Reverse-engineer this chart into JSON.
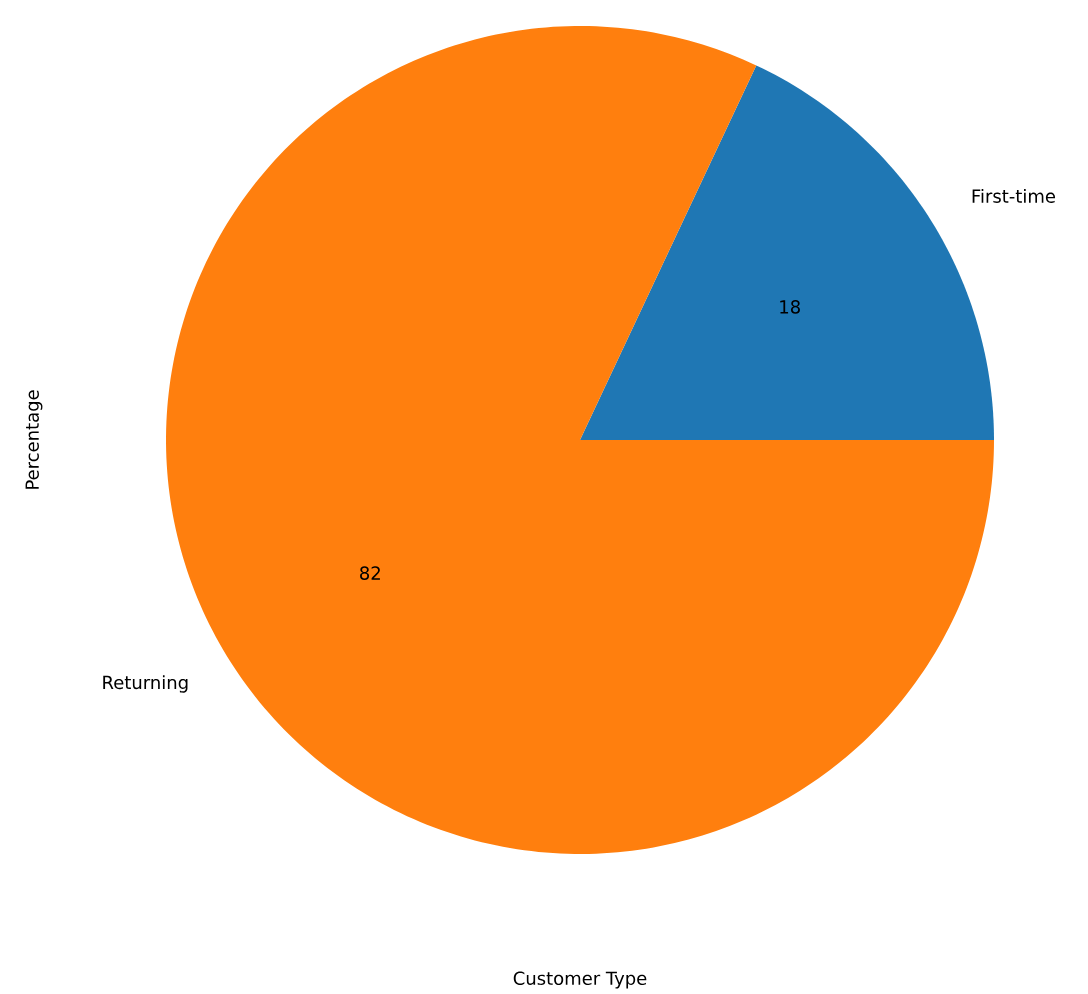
{
  "chart_data": {
    "type": "pie",
    "xlabel": "Customer Type",
    "ylabel": "Percentage",
    "categories": [
      "First-time",
      "Returning"
    ],
    "values": [
      18,
      82
    ],
    "colors": [
      "#1f77b4",
      "#ff7f0e"
    ],
    "data_labels": true
  }
}
